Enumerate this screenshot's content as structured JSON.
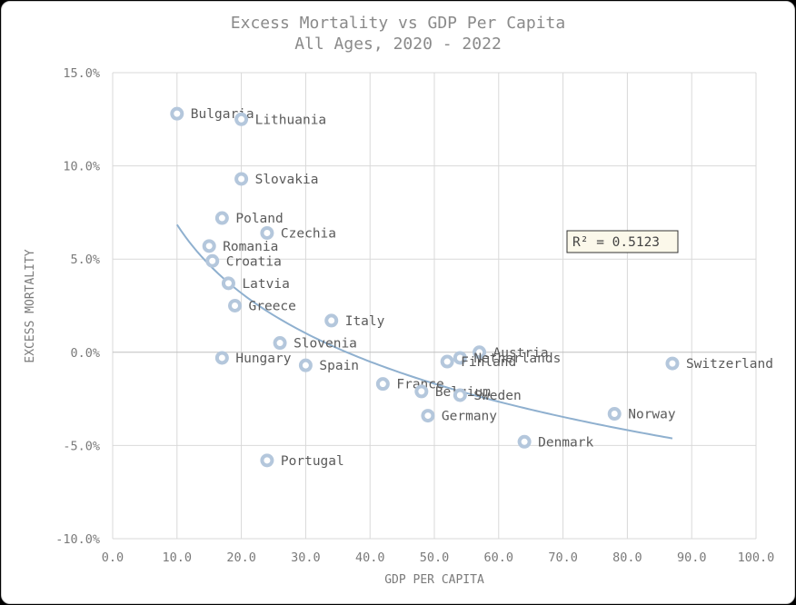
{
  "chart_data": {
    "type": "scatter",
    "title": "Excess Mortality vs GDP Per Capita",
    "subtitle": "All Ages, 2020 - 2022",
    "xlabel": "GDP PER CAPITA",
    "ylabel": "EXCESS MORTALITY",
    "xlim": [
      0,
      100
    ],
    "ylim": [
      -10,
      15
    ],
    "x_ticks": [
      "0.0",
      "10.0",
      "20.0",
      "30.0",
      "40.0",
      "50.0",
      "60.0",
      "70.0",
      "80.0",
      "90.0",
      "100.0"
    ],
    "y_ticks": [
      "15.0%",
      "10.0%",
      "5.0%",
      "0.0%",
      "-5.0%",
      "-10.0%"
    ],
    "grid": true,
    "r_squared_label": "R² = 0.5123",
    "trendline": {
      "type": "logarithmic",
      "x_from": 10,
      "x_to": 87,
      "a": 19.05,
      "b": -5.3
    },
    "points": [
      {
        "label": "Bulgaria",
        "x": 10.0,
        "y": 12.8
      },
      {
        "label": "Lithuania",
        "x": 20.0,
        "y": 12.5
      },
      {
        "label": "Slovakia",
        "x": 20.0,
        "y": 9.3
      },
      {
        "label": "Poland",
        "x": 17.0,
        "y": 7.2
      },
      {
        "label": "Czechia",
        "x": 24.0,
        "y": 6.4
      },
      {
        "label": "Romania",
        "x": 15.0,
        "y": 5.7
      },
      {
        "label": "Croatia",
        "x": 15.5,
        "y": 4.9
      },
      {
        "label": "Latvia",
        "x": 18.0,
        "y": 3.7
      },
      {
        "label": "Greece",
        "x": 19.0,
        "y": 2.5
      },
      {
        "label": "Italy",
        "x": 34.0,
        "y": 1.7
      },
      {
        "label": "Slovenia",
        "x": 26.0,
        "y": 0.5
      },
      {
        "label": "Hungary",
        "x": 17.0,
        "y": -0.3
      },
      {
        "label": "Spain",
        "x": 30.0,
        "y": -0.7
      },
      {
        "label": "France",
        "x": 42.0,
        "y": -1.7
      },
      {
        "label": "Belgium",
        "x": 48.0,
        "y": -2.1
      },
      {
        "label": "Austria",
        "x": 57.0,
        "y": 0.0
      },
      {
        "label": "Netherlands",
        "x": 54.0,
        "y": -0.3
      },
      {
        "label": "Finland",
        "x": 52.0,
        "y": -0.5
      },
      {
        "label": "Sweden",
        "x": 54.0,
        "y": -2.3
      },
      {
        "label": "Germany",
        "x": 49.0,
        "y": -3.4
      },
      {
        "label": "Denmark",
        "x": 64.0,
        "y": -4.8
      },
      {
        "label": "Norway",
        "x": 78.0,
        "y": -3.3
      },
      {
        "label": "Switzerland",
        "x": 87.0,
        "y": -0.6
      },
      {
        "label": "Portugal",
        "x": 24.0,
        "y": -5.8
      }
    ],
    "marker_color": "#b4c7dc",
    "trend_color": "#8fb0cf"
  }
}
